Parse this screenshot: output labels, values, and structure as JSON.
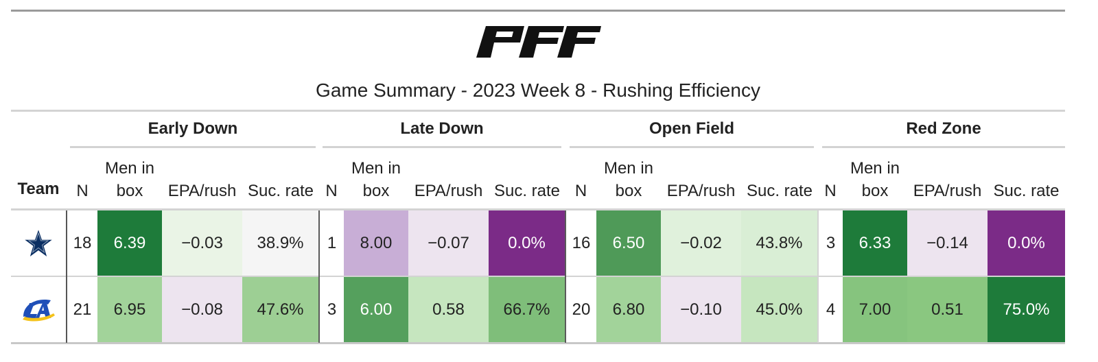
{
  "title": "Game Summary - 2023 Week 8 - Rushing Efficiency",
  "brand_logo": "PFF",
  "team_header": "Team",
  "groups": [
    "Early Down",
    "Late Down",
    "Open Field",
    "Red Zone"
  ],
  "columns": {
    "n": "N",
    "box_line1": "Men in",
    "box_line2": "box",
    "epa": "EPA/rush",
    "suc": "Suc. rate"
  },
  "rows": [
    {
      "team_icon": "cowboys-star-icon",
      "cells": [
        {
          "n": "18",
          "box": "6.39",
          "epa": "−0.03",
          "suc": "38.9%"
        },
        {
          "n": "1",
          "box": "8.00",
          "epa": "−0.07",
          "suc": "0.0%"
        },
        {
          "n": "16",
          "box": "6.50",
          "epa": "−0.02",
          "suc": "43.8%"
        },
        {
          "n": "3",
          "box": "6.33",
          "epa": "−0.14",
          "suc": "0.0%"
        }
      ]
    },
    {
      "team_icon": "rams-logo-icon",
      "cells": [
        {
          "n": "21",
          "box": "6.95",
          "epa": "−0.08",
          "suc": "47.6%"
        },
        {
          "n": "3",
          "box": "6.00",
          "epa": "0.58",
          "suc": "66.7%"
        },
        {
          "n": "20",
          "box": "6.80",
          "epa": "−0.10",
          "suc": "45.0%"
        },
        {
          "n": "4",
          "box": "7.00",
          "epa": "0.51",
          "suc": "75.0%"
        }
      ]
    }
  ],
  "cell_colors": [
    [
      [
        "#ffffff",
        "#1e7b3a",
        "#eaf4e6",
        "#f5f5f5"
      ],
      [
        "#ffffff",
        "#c8aed6",
        "#ede4ef",
        "#7b2b87"
      ],
      [
        "#ffffff",
        "#4f9a58",
        "#e0f1dc",
        "#d9eed5"
      ],
      [
        "#ffffff",
        "#1e7b3a",
        "#ede4ef",
        "#7b2b87"
      ]
    ],
    [
      [
        "#ffffff",
        "#a2d39a",
        "#ede4ef",
        "#9dcf94"
      ],
      [
        "#ffffff",
        "#55a05d",
        "#c6e6bf",
        "#7fbe7a"
      ],
      [
        "#ffffff",
        "#a2d39a",
        "#ede4ef",
        "#c6e6bf"
      ],
      [
        "#ffffff",
        "#86c47e",
        "#8ac780",
        "#1e7b3a"
      ]
    ]
  ],
  "colors": {
    "dark_text_on": "#ffffff",
    "cowboys_navy": "#0b2f63",
    "rams_blue": "#1f4fb8",
    "rams_gold": "#f4c21a"
  }
}
